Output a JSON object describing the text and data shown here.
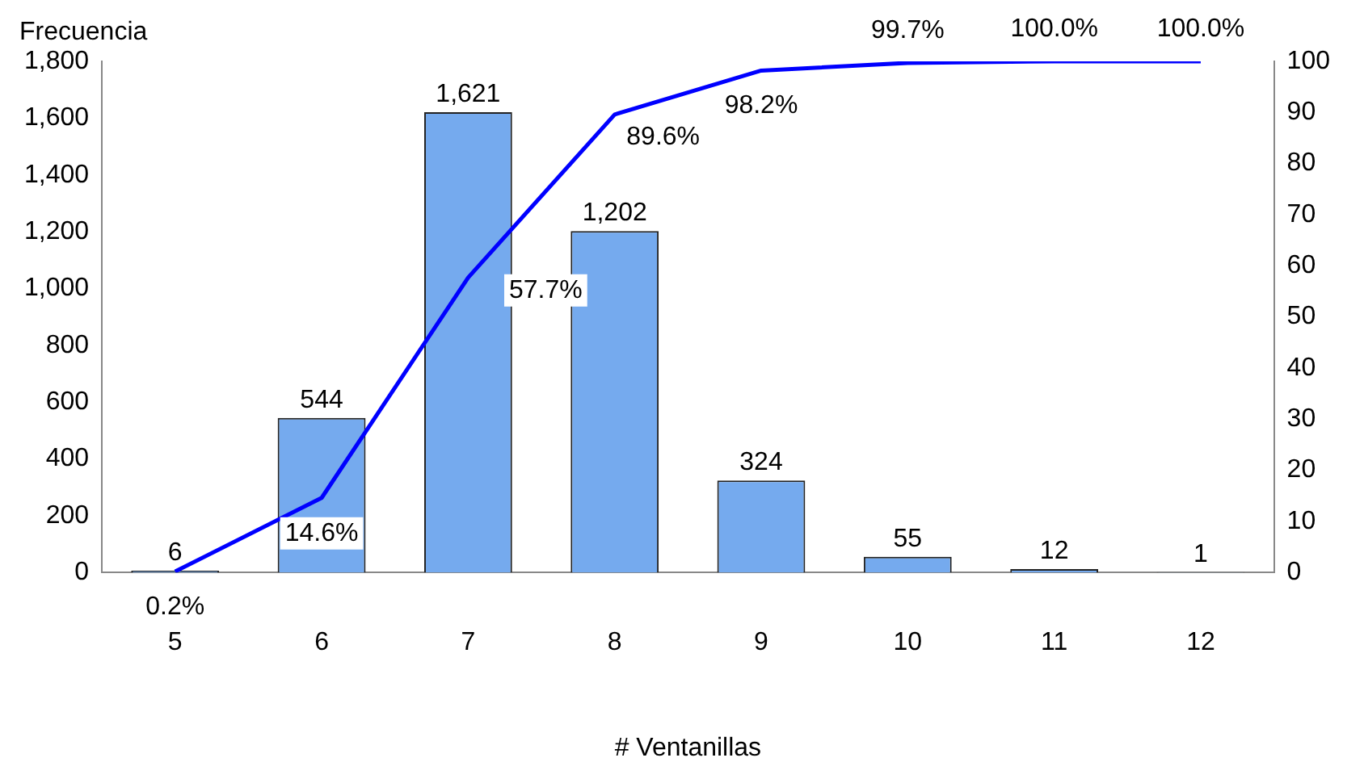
{
  "chart_data": {
    "type": "bar",
    "ylabel": "Frecuencia",
    "xlabel": "# Ventanillas",
    "categories": [
      "5",
      "6",
      "7",
      "8",
      "9",
      "10",
      "11",
      "12"
    ],
    "series": [
      {
        "color": "#75aaee",
        "values": [
          6,
          544,
          1621,
          1202,
          324,
          55,
          12,
          1
        ],
        "value_labels": [
          "6",
          "544",
          "1,621",
          "1,202",
          "324",
          "55",
          "12",
          "1"
        ]
      },
      {
        "type": "line",
        "axis": "y2",
        "color": "#0000ff",
        "values": [
          0.2,
          14.6,
          57.7,
          89.6,
          98.2,
          99.7,
          100.0,
          100.0
        ],
        "value_labels": [
          "0.2%",
          "14.6%",
          "57.7%",
          "89.6%",
          "98.2%",
          "99.7%",
          "100.0%",
          "100.0%"
        ]
      }
    ],
    "ylim": [
      0,
      1800
    ],
    "yticks": [
      0,
      {
        "value": 200,
        "label": "200"
      },
      {
        "value": 400,
        "label": "400"
      },
      {
        "value": 600,
        "label": "600"
      },
      {
        "value": 800,
        "label": "800"
      },
      {
        "value": 1000,
        "label": "1,000"
      },
      {
        "value": 1200,
        "label": "1,200"
      },
      {
        "value": 1400,
        "label": "1,400"
      },
      {
        "value": 1600,
        "label": "1,600"
      },
      {
        "value": 1800,
        "label": "1,800"
      }
    ],
    "y2lim": [
      0,
      100
    ],
    "y2ticks": [
      0,
      10,
      20,
      30,
      40,
      50,
      60,
      70,
      80,
      90,
      100
    ],
    "grid": false,
    "legend": false,
    "marker": "none",
    "line_style": "solid"
  }
}
